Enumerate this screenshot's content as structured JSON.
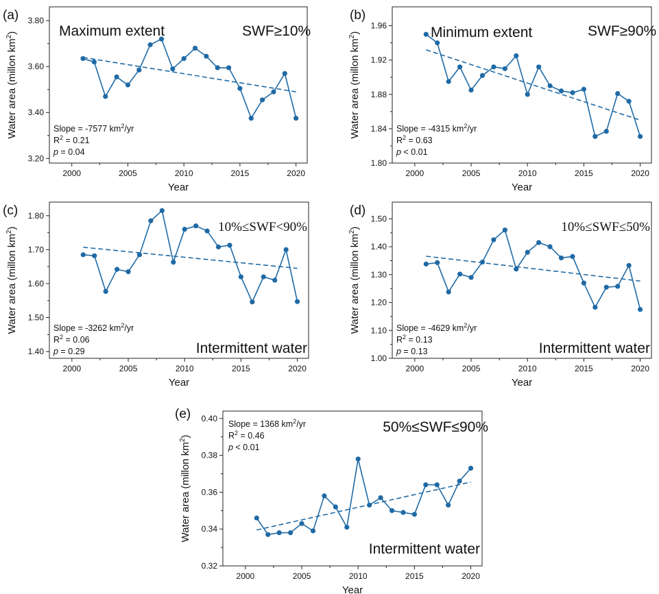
{
  "colors": {
    "series": "#1f6aa5",
    "axis": "#222222"
  },
  "chart_data": [
    {
      "id": "a",
      "type": "line",
      "panel_letter": "(a)",
      "title": "Maximum extent",
      "condition": "SWF≥10%",
      "xlabel": "Year",
      "ylabel": "Water area (millon km",
      "ylabel_unit_exp": "2",
      "ylabel_close": ")",
      "xlim": [
        1998,
        2021
      ],
      "ylim": [
        3.18,
        3.86
      ],
      "xticks": [
        2000,
        2005,
        2010,
        2015,
        2020
      ],
      "yticks": [
        3.2,
        3.4,
        3.6,
        3.8
      ],
      "ytick_labels": [
        "3.20",
        "3.40",
        "3.60",
        "3.80"
      ],
      "x": [
        2001,
        2002,
        2003,
        2004,
        2005,
        2006,
        2007,
        2008,
        2009,
        2010,
        2011,
        2012,
        2013,
        2014,
        2015,
        2016,
        2017,
        2018,
        2019,
        2020
      ],
      "series": [
        {
          "values": [
            3.635,
            3.62,
            3.47,
            3.555,
            3.52,
            3.585,
            3.695,
            3.72,
            3.59,
            3.635,
            3.68,
            3.645,
            3.595,
            3.595,
            3.505,
            3.375,
            3.455,
            3.49,
            3.57,
            3.375
          ]
        }
      ],
      "trend": {
        "x": [
          2001,
          2020
        ],
        "y": [
          3.64,
          3.49
        ]
      },
      "stats": {
        "slope": "Slope = -7577 km",
        "slope_exp": "2",
        "slope_unit": "/yr",
        "r2_prefix": "R",
        "r2_exp": "2",
        "r2_value": " = 0.21",
        "p_label": "p",
        "p_value": " = 0.04"
      }
    },
    {
      "id": "b",
      "type": "line",
      "panel_letter": "(b)",
      "title": "Minimum extent",
      "condition": "SWF≥90%",
      "xlabel": "Year",
      "ylabel": "Water area (millon km",
      "ylabel_unit_exp": "2",
      "ylabel_close": ")",
      "xlim": [
        1998,
        2021
      ],
      "ylim": [
        1.8,
        1.982
      ],
      "xticks": [
        2000,
        2005,
        2010,
        2015,
        2020
      ],
      "yticks": [
        1.8,
        1.84,
        1.88,
        1.92,
        1.96
      ],
      "ytick_labels": [
        "1.80",
        "1.84",
        "1.88",
        "1.92",
        "1.96"
      ],
      "x": [
        2001,
        2002,
        2003,
        2004,
        2005,
        2006,
        2007,
        2008,
        2009,
        2010,
        2011,
        2012,
        2013,
        2014,
        2015,
        2016,
        2017,
        2018,
        2019,
        2020
      ],
      "series": [
        {
          "values": [
            1.95,
            1.94,
            1.895,
            1.912,
            1.885,
            1.902,
            1.912,
            1.91,
            1.925,
            1.88,
            1.912,
            1.89,
            1.884,
            1.882,
            1.886,
            1.831,
            1.837,
            1.881,
            1.872,
            1.831
          ]
        }
      ],
      "trend": {
        "x": [
          2001,
          2020
        ],
        "y": [
          1.932,
          1.85
        ]
      },
      "stats": {
        "slope": "Slope = -4315 km",
        "slope_exp": "2",
        "slope_unit": "/yr",
        "r2_prefix": "R",
        "r2_exp": "2",
        "r2_value": " = 0.63",
        "p_label": "p",
        "p_value": " < 0.01"
      }
    },
    {
      "id": "c",
      "type": "line",
      "panel_letter": "(c)",
      "title": "Intermittent water",
      "condition": "10%≤SWF<90%",
      "xlabel": "Year",
      "ylabel": "Water area (millon km",
      "ylabel_unit_exp": "2",
      "ylabel_close": ")",
      "xlim": [
        1998,
        2021
      ],
      "ylim": [
        1.38,
        1.84
      ],
      "xticks": [
        2000,
        2005,
        2010,
        2015,
        2020
      ],
      "yticks": [
        1.4,
        1.5,
        1.6,
        1.7,
        1.8
      ],
      "ytick_labels": [
        "1.40",
        "1.50",
        "1.60",
        "1.70",
        "1.80"
      ],
      "x": [
        2001,
        2002,
        2003,
        2004,
        2005,
        2006,
        2007,
        2008,
        2009,
        2010,
        2011,
        2012,
        2013,
        2014,
        2015,
        2016,
        2017,
        2018,
        2019,
        2020
      ],
      "series": [
        {
          "values": [
            1.685,
            1.682,
            1.577,
            1.642,
            1.635,
            1.685,
            1.785,
            1.815,
            1.663,
            1.76,
            1.77,
            1.755,
            1.708,
            1.713,
            1.62,
            1.546,
            1.62,
            1.61,
            1.7,
            1.547
          ]
        }
      ],
      "trend": {
        "x": [
          2001,
          2020
        ],
        "y": [
          1.707,
          1.645
        ]
      },
      "stats": {
        "slope": "Slope = -3262 km",
        "slope_exp": "2",
        "slope_unit": "/yr",
        "r2_prefix": "R",
        "r2_exp": "2",
        "r2_value": " = 0.06",
        "p_label": "p",
        "p_value": " = 0.29"
      }
    },
    {
      "id": "d",
      "type": "line",
      "panel_letter": "(d)",
      "title": "Intermittent water",
      "condition": "10%≤SWF≤50%",
      "xlabel": "Year",
      "ylabel": "Water area (millon km",
      "ylabel_unit_exp": "2",
      "ylabel_close": ")",
      "xlim": [
        1998,
        2021
      ],
      "ylim": [
        1.0,
        1.56
      ],
      "xticks": [
        2000,
        2005,
        2010,
        2015,
        2020
      ],
      "yticks": [
        1.0,
        1.1,
        1.2,
        1.3,
        1.4,
        1.5
      ],
      "ytick_labels": [
        "1.00",
        "1.10",
        "1.20",
        "1.30",
        "1.40",
        "1.50"
      ],
      "x": [
        2001,
        2002,
        2003,
        2004,
        2005,
        2006,
        2007,
        2008,
        2009,
        2010,
        2011,
        2012,
        2013,
        2014,
        2015,
        2016,
        2017,
        2018,
        2019,
        2020
      ],
      "series": [
        {
          "values": [
            1.338,
            1.343,
            1.238,
            1.302,
            1.29,
            1.345,
            1.425,
            1.46,
            1.32,
            1.38,
            1.415,
            1.4,
            1.36,
            1.365,
            1.27,
            1.183,
            1.255,
            1.258,
            1.333,
            1.175
          ]
        }
      ],
      "trend": {
        "x": [
          2001,
          2020
        ],
        "y": [
          1.366,
          1.277
        ]
      },
      "stats": {
        "slope": "Slope = -4629 km",
        "slope_exp": "2",
        "slope_unit": "/yr",
        "r2_prefix": "R",
        "r2_exp": "2",
        "r2_value": " = 0.13",
        "p_label": "p",
        "p_value": " = 0.13"
      }
    },
    {
      "id": "e",
      "type": "line",
      "panel_letter": "(e)",
      "title": "Intermittent water",
      "condition": "50%≤SWF≤90%",
      "xlabel": "Year",
      "ylabel": "Water area (millon km",
      "ylabel_unit_exp": "2",
      "ylabel_close": ")",
      "xlim": [
        1998,
        2021
      ],
      "ylim": [
        0.32,
        0.404
      ],
      "xticks": [
        2000,
        2005,
        2010,
        2015,
        2020
      ],
      "yticks": [
        0.32,
        0.34,
        0.36,
        0.38,
        0.4
      ],
      "ytick_labels": [
        "0.32",
        "0.34",
        "0.36",
        "0.38",
        "0.40"
      ],
      "x": [
        2001,
        2002,
        2003,
        2004,
        2005,
        2006,
        2007,
        2008,
        2009,
        2010,
        2011,
        2012,
        2013,
        2014,
        2015,
        2016,
        2017,
        2018,
        2019,
        2020
      ],
      "series": [
        {
          "values": [
            0.346,
            0.337,
            0.338,
            0.338,
            0.343,
            0.339,
            0.358,
            0.352,
            0.341,
            0.378,
            0.353,
            0.357,
            0.35,
            0.349,
            0.348,
            0.364,
            0.364,
            0.353,
            0.366,
            0.373
          ]
        }
      ],
      "trend": {
        "x": [
          2001,
          2020
        ],
        "y": [
          0.3395,
          0.3655
        ]
      },
      "stats": {
        "slope": "Slope = 1368 km",
        "slope_exp": "2",
        "slope_unit": "/yr",
        "r2_prefix": "R",
        "r2_exp": "2",
        "r2_value": " = 0.46",
        "p_label": "p",
        "p_value": " < 0.01"
      }
    }
  ]
}
